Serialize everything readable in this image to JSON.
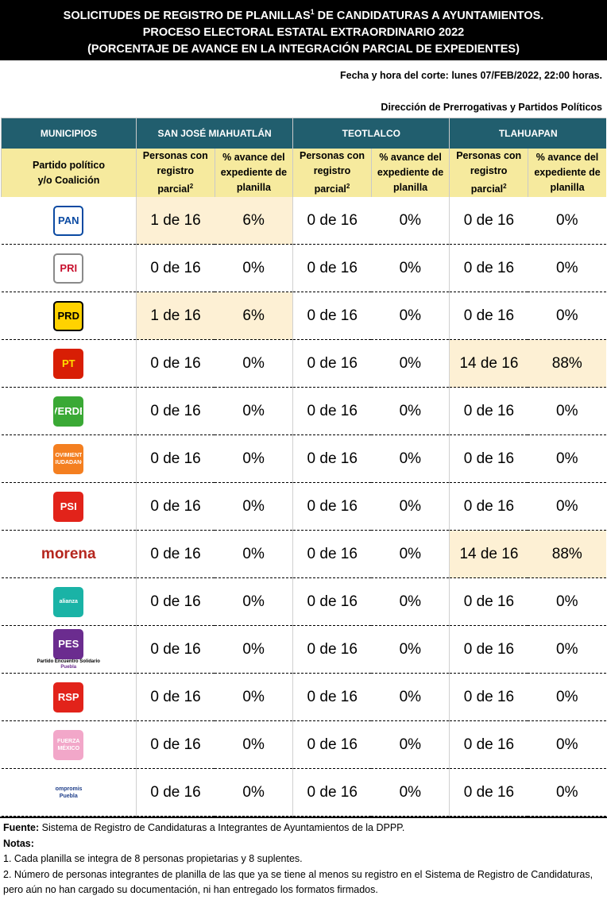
{
  "header": {
    "title": [
      {
        "text": "SOLICITUDES DE REGISTRO DE PLANILLAS",
        "sup": "1",
        "rest": " DE CANDIDATURAS A AYUNTAMIENTOS."
      },
      {
        "text": "PROCESO ELECTORAL ESTATAL EXTRAORDINARIO 2022"
      },
      {
        "text": "(PORCENTAJE DE AVANCE EN LA INTEGRACIÓN PARCIAL DE EXPEDIENTES)"
      }
    ],
    "cutoff": "Fecha y hora del corte: lunes 07/FEB/2022, 22:00 horas.",
    "department": "Dirección de Prerrogativas y Partidos Políticos"
  },
  "table": {
    "first_header": "MUNICIPIOS",
    "municipios": [
      "SAN JOSÉ MIAHUATLÁN",
      "TEOTLALCO",
      "TLAHUAPAN"
    ],
    "party_header": [
      "Partido político",
      "y/o Coalición"
    ],
    "persons_header": [
      "Personas con",
      "registro",
      "parcial"
    ],
    "persons_sup": "2",
    "percent_header": [
      "% avance del",
      "expediente de",
      "planilla"
    ],
    "highlight_color": "#fdf0d4",
    "rows": [
      {
        "logo": {
          "text": "PAN",
          "bg": "#ffffff",
          "fg": "#0b4aa2",
          "border": "#0b4aa2"
        },
        "cells": [
          "1 de 16",
          "6%",
          "0 de 16",
          "0%",
          "0 de 16",
          "0%"
        ],
        "highlight": [
          true,
          false,
          false
        ]
      },
      {
        "logo": {
          "text": "PRI",
          "bg": "#ffffff",
          "fg": "#c8102e",
          "border": "#8a8a8a"
        },
        "cells": [
          "0 de 16",
          "0%",
          "0 de 16",
          "0%",
          "0 de 16",
          "0%"
        ],
        "highlight": [
          false,
          false,
          false
        ]
      },
      {
        "logo": {
          "text": "PRD",
          "bg": "#ffd200",
          "fg": "#000000",
          "border": "#000000"
        },
        "cells": [
          "1 de 16",
          "6%",
          "0 de 16",
          "0%",
          "0 de 16",
          "0%"
        ],
        "highlight": [
          true,
          false,
          false
        ]
      },
      {
        "logo": {
          "text": "PT",
          "bg": "#d81e05",
          "fg": "#ffde00",
          "border": "#d81e05"
        },
        "cells": [
          "0 de 16",
          "0%",
          "0 de 16",
          "0%",
          "14 de 16",
          "88%"
        ],
        "highlight": [
          false,
          false,
          true
        ]
      },
      {
        "logo": {
          "text": "VERDE",
          "bg": "#3aa935",
          "fg": "#ffffff",
          "border": "#3aa935"
        },
        "cells": [
          "0 de 16",
          "0%",
          "0 de 16",
          "0%",
          "0 de 16",
          "0%"
        ],
        "highlight": [
          false,
          false,
          false
        ]
      },
      {
        "logo": {
          "text": "MOVIMIENTO CIUDADANO",
          "bg": "#f47f20",
          "fg": "#ffffff",
          "border": "#f47f20"
        },
        "cells": [
          "0 de 16",
          "0%",
          "0 de 16",
          "0%",
          "0 de 16",
          "0%"
        ],
        "highlight": [
          false,
          false,
          false
        ]
      },
      {
        "logo": {
          "text": "PSI",
          "bg": "#e2231a",
          "fg": "#ffffff",
          "border": "#e2231a"
        },
        "cells": [
          "0 de 16",
          "0%",
          "0 de 16",
          "0%",
          "0 de 16",
          "0%"
        ],
        "highlight": [
          false,
          false,
          false
        ]
      },
      {
        "logo": {
          "text": "morena",
          "bg": "transparent",
          "fg": "#b5261e",
          "border": "transparent"
        },
        "cells": [
          "0 de 16",
          "0%",
          "0 de 16",
          "0%",
          "14 de 16",
          "88%"
        ],
        "highlight": [
          false,
          false,
          true
        ]
      },
      {
        "logo": {
          "text": "alianza",
          "bg": "#1ab3a6",
          "fg": "#ffffff",
          "border": "#1ab3a6"
        },
        "cells": [
          "0 de 16",
          "0%",
          "0 de 16",
          "0%",
          "0 de 16",
          "0%"
        ],
        "highlight": [
          false,
          false,
          false
        ]
      },
      {
        "logo": {
          "text": "PES",
          "bg": "#6b2c8f",
          "fg": "#ffffff",
          "border": "#6b2c8f",
          "caption": "Partido Encuentro Solidario",
          "caption2": "Puebla"
        },
        "cells": [
          "0 de 16",
          "0%",
          "0 de 16",
          "0%",
          "0 de 16",
          "0%"
        ],
        "highlight": [
          false,
          false,
          false
        ]
      },
      {
        "logo": {
          "text": "RSP",
          "bg": "#e2231a",
          "fg": "#ffffff",
          "border": "#e2231a"
        },
        "cells": [
          "0 de 16",
          "0%",
          "0 de 16",
          "0%",
          "0 de 16",
          "0%"
        ],
        "highlight": [
          false,
          false,
          false
        ]
      },
      {
        "logo": {
          "text": "FUERZA MÉXICO",
          "bg": "#f2a7c9",
          "fg": "#ffffff",
          "border": "#f2a7c9"
        },
        "cells": [
          "0 de 16",
          "0%",
          "0 de 16",
          "0%",
          "0 de 16",
          "0%"
        ],
        "highlight": [
          false,
          false,
          false
        ]
      },
      {
        "logo": {
          "text": "Compromiso Puebla",
          "bg": "transparent",
          "fg": "#1f3f8a",
          "border": "transparent"
        },
        "cells": [
          "0 de 16",
          "0%",
          "0 de 16",
          "0%",
          "0 de 16",
          "0%"
        ],
        "highlight": [
          false,
          false,
          false
        ]
      }
    ]
  },
  "footer": {
    "source_label": "Fuente:",
    "source": " Sistema de Registro de Candidaturas a Integrantes de Ayuntamientos de la DPPP.",
    "notes_label": "Notas:",
    "notes": [
      "1. Cada planilla se integra de 8 personas propietarias y 8 suplentes.",
      "2. Número de personas integrantes de planilla de las que ya se tiene al menos su registro en el Sistema de Registro de Candidaturas, pero aún no han cargado su documentación, ni han entregado los formatos firmados."
    ]
  }
}
